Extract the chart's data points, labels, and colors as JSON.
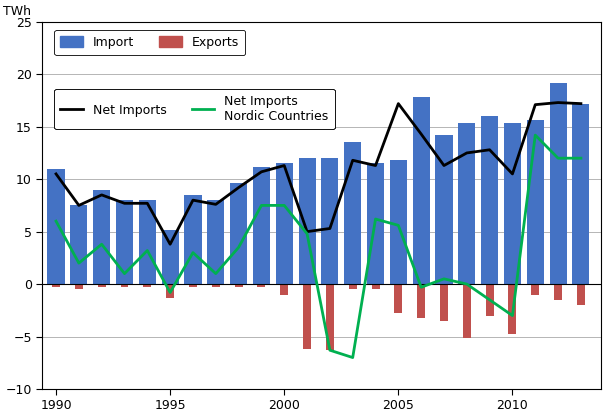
{
  "years": [
    1990,
    1991,
    1992,
    1993,
    1994,
    1995,
    1996,
    1997,
    1998,
    1999,
    2000,
    2001,
    2002,
    2003,
    2004,
    2005,
    2006,
    2007,
    2008,
    2009,
    2010,
    2011,
    2012,
    2013
  ],
  "imports": [
    11.0,
    7.5,
    9.0,
    8.0,
    8.0,
    5.2,
    8.5,
    8.0,
    9.6,
    11.2,
    11.5,
    12.0,
    12.0,
    13.5,
    11.5,
    11.8,
    17.8,
    14.2,
    15.4,
    16.0,
    15.4,
    15.6,
    19.2,
    17.2
  ],
  "exports": [
    -0.3,
    -0.5,
    -0.3,
    -0.3,
    -0.3,
    -1.3,
    -0.3,
    -0.3,
    -0.3,
    -0.3,
    -1.0,
    -6.2,
    -6.3,
    -0.5,
    -0.5,
    -2.8,
    -3.2,
    -3.5,
    -5.1,
    -3.0,
    -4.8,
    -1.0,
    -1.5,
    -2.0
  ],
  "net_imports": [
    10.5,
    7.5,
    8.5,
    7.7,
    7.7,
    3.8,
    8.0,
    7.6,
    9.2,
    10.7,
    11.3,
    5.0,
    5.3,
    11.8,
    11.3,
    17.2,
    14.3,
    11.3,
    12.5,
    12.8,
    10.5,
    17.1,
    17.3,
    17.2
  ],
  "net_imports_nordic": [
    6.0,
    2.0,
    3.8,
    1.0,
    3.2,
    -0.8,
    3.0,
    1.0,
    3.5,
    7.5,
    7.5,
    4.8,
    -6.3,
    -7.0,
    6.2,
    5.6,
    -0.3,
    0.5,
    0.0,
    -1.5,
    -3.0,
    14.2,
    12.0,
    12.0
  ],
  "bar_color_import": "#4472C4",
  "bar_color_export": "#C0504D",
  "line_color_net": "#000000",
  "line_color_nordic": "#00B050",
  "ylabel": "TWh",
  "ylim": [
    -10,
    25
  ],
  "yticks": [
    -10,
    -5,
    0,
    5,
    10,
    15,
    20,
    25
  ],
  "xticks": [
    1990,
    1995,
    2000,
    2005,
    2010
  ],
  "background_color": "#ffffff",
  "plot_background": "#ffffff",
  "bar_width": 0.75,
  "export_bar_width": 0.35,
  "figwidth": 6.07,
  "figheight": 4.18,
  "dpi": 100
}
